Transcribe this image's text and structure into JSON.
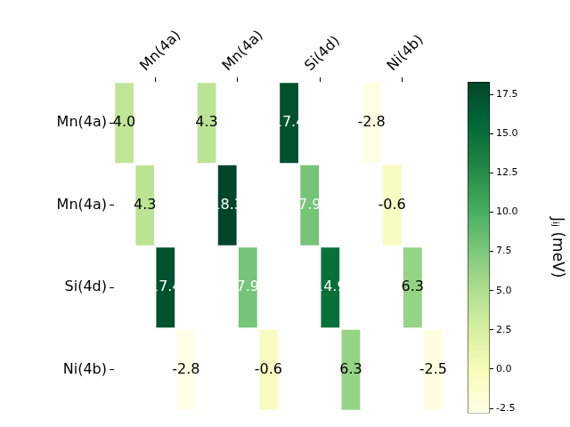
{
  "chart_data": {
    "type": "heatmap",
    "x_categories": [
      "Mn(4a)",
      "Mn(4a)",
      "Si(4d)",
      "Ni(4b)"
    ],
    "y_categories": [
      "Mn(4a)",
      "Mn(4a)",
      "Si(4d)",
      "Ni(4b)"
    ],
    "cells": [
      [
        4.0,
        4.3,
        17.4,
        -2.8
      ],
      [
        4.3,
        18.3,
        7.9,
        -0.6
      ],
      [
        17.4,
        7.9,
        14.9,
        6.3
      ],
      [
        -2.8,
        -0.6,
        6.3,
        -2.5
      ]
    ],
    "value_labels": [
      [
        "4.0",
        "4.3",
        "17.4",
        "-2.8"
      ],
      [
        "4.3",
        "18.3",
        "7.9",
        "-0.6"
      ],
      [
        "17.4",
        "7.9",
        "14.9",
        "6.3"
      ],
      [
        "-2.8",
        "-0.6",
        "6.3",
        "-2.5"
      ]
    ],
    "data_labels": true,
    "colorbar": {
      "label": "Jᵢⱼ (meV)",
      "range": [
        -2.8,
        18.3
      ],
      "ticks": [
        -2.5,
        {
          "value": 0,
          "label": "0.0"
        },
        2.5,
        {
          "value": 5,
          "label": "5.0"
        },
        7.5,
        {
          "value": 10,
          "label": "10.0"
        },
        12.5,
        {
          "value": 15,
          "label": "15.0"
        },
        17.5
      ]
    }
  }
}
